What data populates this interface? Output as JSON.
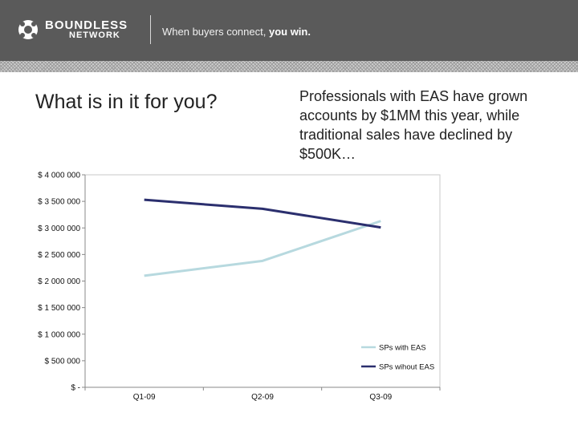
{
  "header": {
    "brand_line1": "BOUNDLESS",
    "brand_line2": "NETWORK",
    "tagline_start": "When buyers connect, ",
    "tagline_emphasis": "you win.",
    "logo_icon": "boundless-globe-icon",
    "background": "#5a5a5a"
  },
  "slide": {
    "title": "What is in it for you?",
    "subtitle": "Professionals  with EAS  have grown accounts by $1MM this year, while traditional sales have declined by $500K…"
  },
  "chart_data": {
    "type": "line",
    "categories": [
      "Q1-09",
      "Q2-09",
      "Q3-09"
    ],
    "y_tick_values": [
      0,
      500000,
      1000000,
      1500000,
      2000000,
      2500000,
      3000000,
      3500000,
      4000000
    ],
    "y_tick_labels": [
      "$ -",
      "$ 500 000",
      "$ 1 000 000",
      "$ 1 500 000",
      "$ 2 000 000",
      "$ 2 500 000",
      "$ 3 000 000",
      "$ 3 500 000",
      "$ 4 000 000"
    ],
    "ylim": [
      0,
      4000000
    ],
    "grid": false,
    "legend_position": "bottom-right",
    "series": [
      {
        "name": "SPs with EAS",
        "values": [
          2100000,
          2380000,
          3130000
        ],
        "color": "#b7d9df"
      },
      {
        "name": "SPs wihout EAS",
        "values": [
          3530000,
          3360000,
          3010000
        ],
        "color": "#2b2f6e"
      }
    ]
  }
}
